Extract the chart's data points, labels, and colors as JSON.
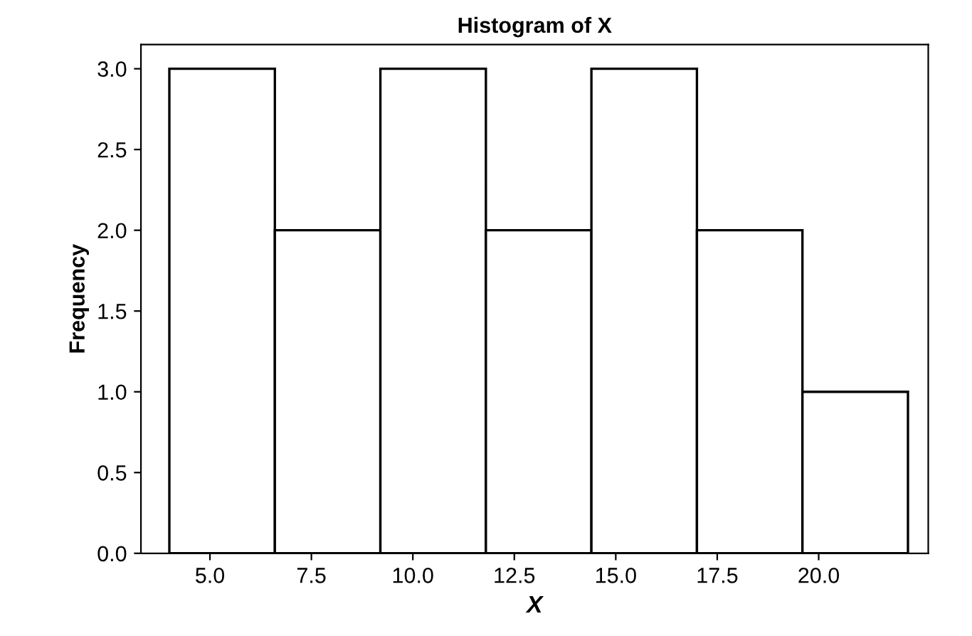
{
  "chart_data": {
    "type": "histogram",
    "title": "Histogram of X",
    "xlabel": "X",
    "ylabel": "Frequency",
    "bins": [
      4.0,
      6.6,
      9.2,
      11.8,
      14.4,
      17.0,
      19.6,
      22.2
    ],
    "values": [
      3,
      2,
      3,
      2,
      3,
      2,
      1
    ],
    "color": "#ffffff",
    "xlim": [
      3.3,
      22.7
    ],
    "xticks": [
      {
        "value": 5,
        "label": "5.0"
      },
      {
        "value": 7.5,
        "label": "7.5"
      },
      {
        "value": 10,
        "label": "10.0"
      },
      {
        "value": 12.5,
        "label": "12.5"
      },
      {
        "value": 15,
        "label": "15.0"
      },
      {
        "value": 17.5,
        "label": "17.5"
      },
      {
        "value": 20,
        "label": "20.0"
      }
    ],
    "ylim": [
      0,
      3.15
    ],
    "yticks": [
      {
        "value": 0,
        "label": "0.0"
      },
      {
        "value": 0.5,
        "label": "0.5"
      },
      {
        "value": 1,
        "label": "1.0"
      },
      {
        "value": 1.5,
        "label": "1.5"
      },
      {
        "value": 2,
        "label": "2.0"
      },
      {
        "value": 2.5,
        "label": "2.5"
      },
      {
        "value": 3,
        "label": "3.0"
      }
    ],
    "grid": false
  }
}
